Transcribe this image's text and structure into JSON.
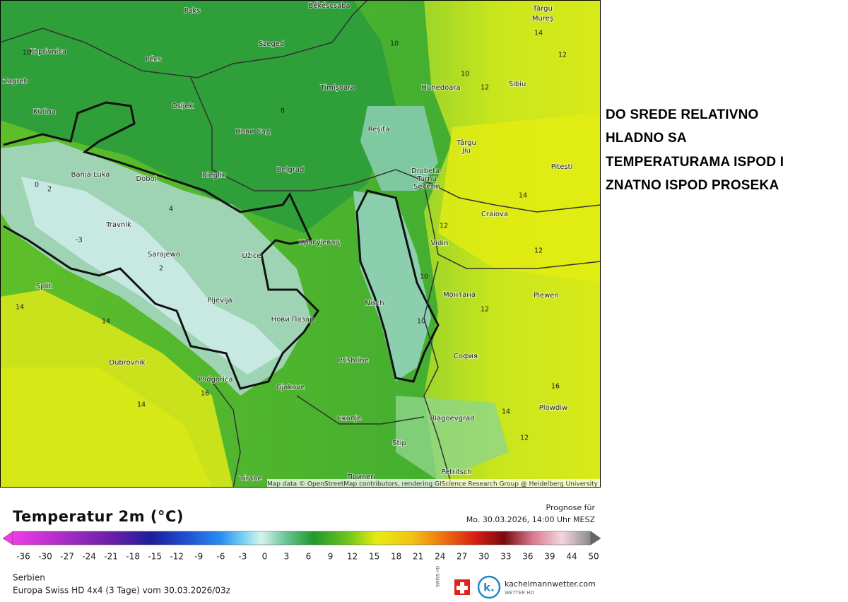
{
  "headline": [
    "DO SREDE RELATIVNO",
    "HLADNO SA",
    "TEMPERATURAMA ISPOD I",
    "ZNATNO ISPOD PROSEKA"
  ],
  "map": {
    "cities": [
      "Paks",
      "Békéscsaba",
      "Târgu",
      "Mureș",
      "Koprivnica",
      "Pécs",
      "Szeged",
      "Zagreb",
      "Timișoara",
      "Hunedoara",
      "Sibiu",
      "Kutina",
      "Osijek",
      "Нови Сад",
      "Reșița",
      "Târgu",
      "Jiu",
      "Pitești",
      "Banja Luka",
      "Doboj",
      "Bieglin",
      "Belgrad",
      "Drobeta-",
      "Turnu",
      "Severin",
      "Craiova",
      "Travnik",
      "Vidin",
      "Sarajewo",
      "Užice",
      "Крагујевац",
      "Split",
      "Монтана",
      "Plewen",
      "Pljevlja",
      "Nisch",
      "Нови Пазар",
      "Prishtine",
      "София",
      "Dubrovnik",
      "Podgorica",
      "Gjakove",
      "Plowdiw",
      "Скопје",
      "Blagoevgrad",
      "Stip",
      "Tirane",
      "Прилеп",
      "Petritsch"
    ],
    "contour_labels": [
      "10",
      "8",
      "14",
      "12",
      "10",
      "10",
      "12",
      "-3",
      "0",
      "2",
      "4",
      "2",
      "14",
      "14",
      "14",
      "16",
      "12",
      "12",
      "14",
      "12",
      "10",
      "16",
      "14",
      "12",
      "10"
    ],
    "attribution": "Map data © OpenStreetMap contributors, rendering GIScience Research Group @ Heidelberg University"
  },
  "legend": {
    "title": "Temperatur 2m (°C)",
    "forecast_label": "Prognose für",
    "forecast_time": "Mo. 30.03.2026, 14:00 Uhr MESZ",
    "ticks": [
      "-36",
      "-30",
      "-27",
      "-24",
      "-21",
      "-18",
      "-15",
      "-12",
      "-9",
      "-6",
      "-3",
      "0",
      "3",
      "6",
      "9",
      "12",
      "15",
      "18",
      "21",
      "24",
      "27",
      "30",
      "33",
      "36",
      "39",
      "44",
      "50"
    ],
    "region": "Serbien",
    "model": "Europa Swiss HD 4x4 (3 Tage) vom 30.03.2026/03z"
  },
  "logos": {
    "swiss": "SWISS HD",
    "k": "k.",
    "site": "kachelmannwetter.com",
    "sub": "WETTER HD"
  }
}
